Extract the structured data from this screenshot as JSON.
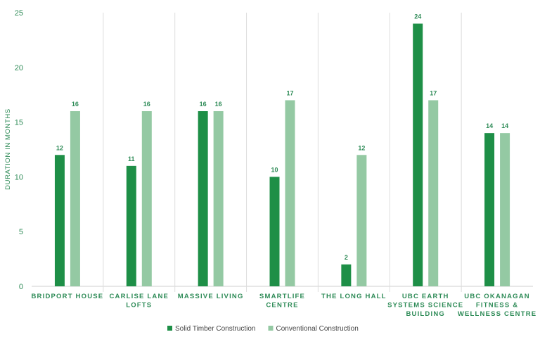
{
  "chart_data": {
    "type": "bar",
    "title": "",
    "xlabel": "",
    "ylabel": "DURATION IN MONTHS",
    "ylim": [
      0,
      25
    ],
    "yticks": [
      0,
      5,
      10,
      15,
      20,
      25
    ],
    "grid": "vertical separators",
    "legend_position": "bottom",
    "categories": [
      [
        "BRIDPORT HOUSE"
      ],
      [
        "CARLISE LANE",
        "LOFTS"
      ],
      [
        "MASSIVE LIVING"
      ],
      [
        "SMARTLIFE",
        "CENTRE"
      ],
      [
        "THE LONG HALL"
      ],
      [
        "UBC EARTH",
        "SYSTEMS SCIENCE",
        "BUILDING"
      ],
      [
        "UBC OKANAGAN",
        "FITNESS &",
        "WELLNESS CENTRE"
      ]
    ],
    "series": [
      {
        "name": "Solid Timber Construction",
        "color": "#1e8f47",
        "values": [
          12,
          11,
          16,
          10,
          2,
          24,
          14
        ]
      },
      {
        "name": "Conventional Construction",
        "color": "#94c9a3",
        "values": [
          16,
          16,
          16,
          17,
          12,
          17,
          14
        ]
      }
    ]
  }
}
